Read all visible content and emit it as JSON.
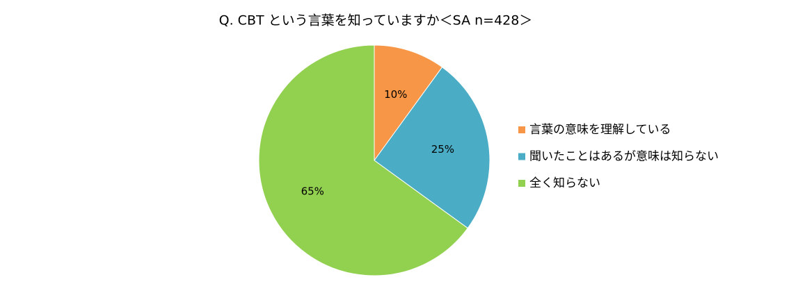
{
  "chart_data": {
    "type": "pie",
    "title": "Q. CBT という言葉を知っていますか＜SA n=428＞",
    "categories": [
      "言葉の意味を理解している",
      "聞いたことはあるが意味は知らない",
      "全く知らない"
    ],
    "values": [
      10,
      25,
      65
    ],
    "value_labels": [
      "10%",
      "25%",
      "65%"
    ],
    "colors": [
      "#F79646",
      "#4BACC6",
      "#92D050"
    ],
    "legend": "right"
  }
}
